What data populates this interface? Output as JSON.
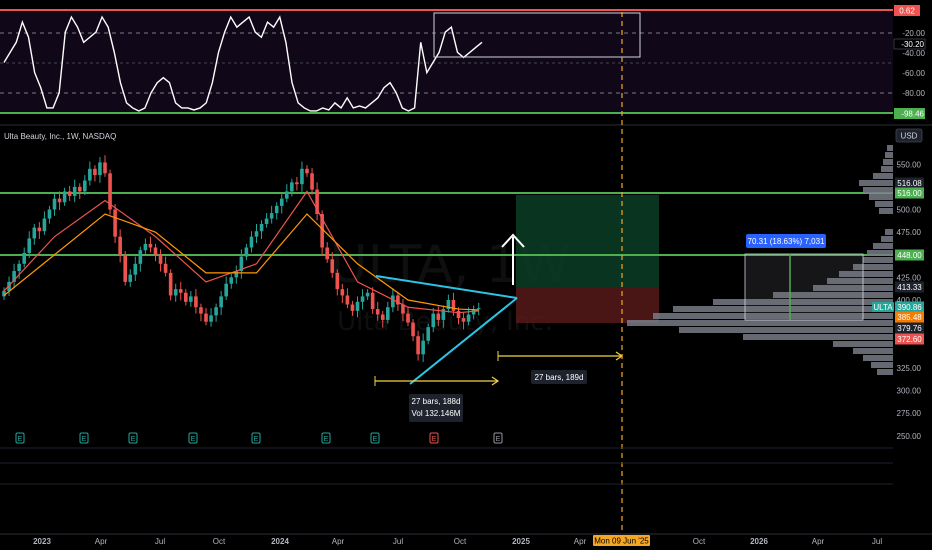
{
  "chart_data": {
    "type": "candlestick",
    "title": "Ulta Beauty, Inc., 1W, NASDAQ",
    "watermark": {
      "symbol": "ULTA, 1W",
      "name": "Ulta Beauty, Inc."
    },
    "currency": "USD",
    "x_ticks": [
      "2023",
      "Apr",
      "Jul",
      "Oct",
      "2024",
      "Apr",
      "Jul",
      "Oct",
      "2025",
      "Apr",
      "Mon 09 Jun '25",
      "Oct",
      "2026",
      "Apr",
      "Jul"
    ],
    "y_ticks": [
      "550.00",
      "500.00",
      "475.00",
      "425.00",
      "400.00",
      "325.00",
      "300.00",
      "275.00",
      "250.00"
    ],
    "ylim": [
      240,
      590
    ],
    "price_levels": [
      {
        "label": "516.08",
        "value": 516.08,
        "color": "#1e222d"
      },
      {
        "label": "516.00",
        "value": 516.0,
        "color": "#4caf50"
      },
      {
        "label": "448.00",
        "value": 448.0,
        "color": "#4caf50"
      },
      {
        "label": "413.33",
        "value": 413.33,
        "color": "#1e222d"
      },
      {
        "label": "390.86",
        "value": 390.86,
        "color": "#26a69a",
        "tag": "ULTA"
      },
      {
        "label": "385.48",
        "value": 385.48,
        "color": "#f57c00"
      },
      {
        "label": "379.76",
        "value": 379.76,
        "color": "#1e222d"
      },
      {
        "label": "372.60",
        "value": 372.6,
        "color": "#ef5350"
      }
    ],
    "series": [
      {
        "name": "close",
        "x": [
          0,
          1,
          2,
          3,
          4,
          5,
          6,
          7,
          8,
          9,
          10,
          11,
          12,
          13,
          14,
          15,
          16,
          17,
          18,
          19,
          20,
          21,
          22,
          23,
          24,
          25,
          26,
          27,
          28,
          29,
          30,
          31,
          32,
          33,
          34,
          35,
          36,
          37,
          38,
          39,
          40,
          41,
          42,
          43,
          44,
          45,
          46,
          47,
          48,
          49,
          50,
          51,
          52,
          53,
          54,
          55,
          56,
          57,
          58,
          59,
          60,
          61,
          62,
          63,
          64,
          65,
          66,
          67,
          68,
          69,
          70,
          71,
          72,
          73,
          74,
          75,
          76,
          77,
          78,
          79,
          80,
          81,
          82,
          83,
          84,
          85,
          86,
          87,
          88,
          89,
          90,
          91,
          92,
          93,
          94
        ],
        "y": [
          410,
          420,
          432,
          440,
          452,
          468,
          480,
          476,
          490,
          500,
          512,
          508,
          520,
          515,
          525,
          520,
          532,
          545,
          538,
          552,
          540,
          500,
          470,
          450,
          420,
          428,
          440,
          455,
          462,
          458,
          450,
          440,
          430,
          405,
          412,
          408,
          398,
          404,
          392,
          385,
          376,
          383,
          392,
          404,
          418,
          425,
          432,
          448,
          458,
          470,
          476,
          484,
          490,
          496,
          504,
          512,
          520,
          530,
          528,
          545,
          540,
          522,
          495,
          458,
          445,
          430,
          412,
          405,
          395,
          388,
          398,
          404,
          408,
          390,
          384,
          378,
          392,
          405,
          395,
          385,
          375,
          360,
          340,
          355,
          370,
          385,
          378,
          390,
          400,
          388,
          380,
          376,
          384,
          390,
          391
        ]
      },
      {
        "name": "ema_fast",
        "x": [
          0,
          10,
          20,
          30,
          40,
          50,
          60,
          70,
          80,
          90,
          94
        ],
        "y": [
          410,
          470,
          510,
          470,
          420,
          440,
          520,
          420,
          392,
          386,
          388
        ]
      },
      {
        "name": "ema_slow",
        "x": [
          0,
          10,
          20,
          30,
          40,
          50,
          60,
          70,
          80,
          90,
          94
        ],
        "y": [
          405,
          450,
          495,
          475,
          430,
          430,
          495,
          440,
          400,
          390,
          389
        ]
      }
    ],
    "oscillator": {
      "ticks": [
        "0.62",
        "-20.00",
        "-30.20",
        "-40.00",
        "-60.00",
        "-80.00",
        "-98.46"
      ],
      "range": [
        -100,
        0
      ],
      "levels": [
        -20,
        -80
      ],
      "values": [
        -50,
        -40,
        -30,
        -10,
        -25,
        -60,
        -75,
        -95,
        -95,
        -80,
        -20,
        -5,
        -15,
        -30,
        -25,
        -20,
        -5,
        -15,
        -40,
        -70,
        -90,
        -95,
        -98,
        -95,
        -80,
        -70,
        -65,
        -70,
        -90,
        -95,
        -95,
        -97,
        -95,
        -90,
        -70,
        -40,
        -20,
        -5,
        -15,
        -10,
        -5,
        -20,
        -25,
        -10,
        -15,
        -5,
        -30,
        -70,
        -90,
        -95,
        -98,
        -98,
        -95,
        -97,
        -90,
        -95,
        -85,
        -95,
        -93,
        -95,
        -90,
        -85,
        -75,
        -70,
        -80,
        -95,
        -98,
        -95,
        -30,
        -60,
        -50,
        -40,
        -20,
        -15,
        -40,
        -45,
        -40,
        -35,
        -30
      ]
    },
    "annotations": {
      "range_left": {
        "line1": "27 bars, 188d",
        "line2": "Vol 132.146M"
      },
      "range_right": "27 bars, 189d",
      "measure_box": "70.31 (18.63%) 7,031"
    }
  }
}
